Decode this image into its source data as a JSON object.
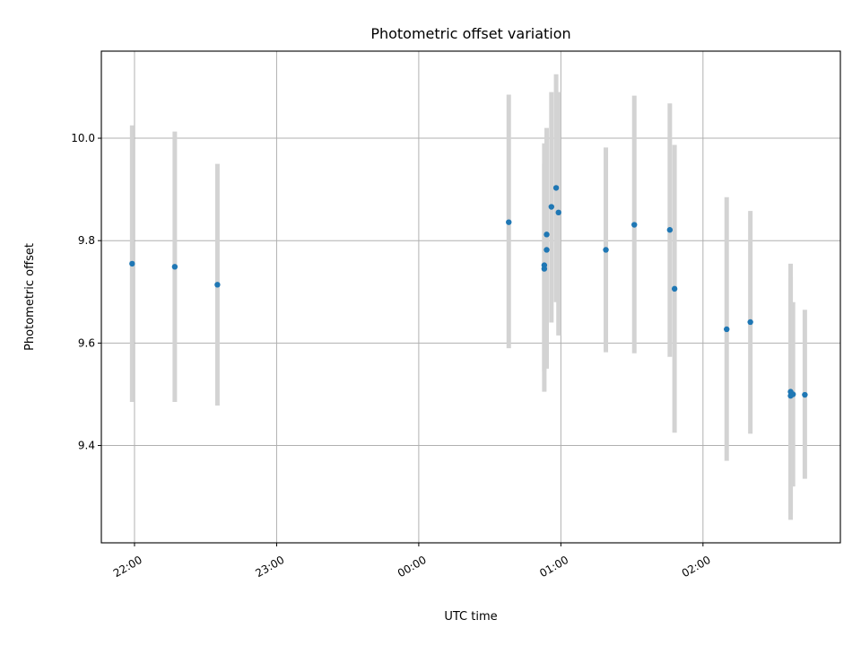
{
  "chart_data": {
    "type": "scatter",
    "title": "Photometric offset variation",
    "xlabel": "UTC time",
    "ylabel": "Photometric offset",
    "x_unit": "UTC time (hours, day-wrapped; 24.00 = 00:00)",
    "xlim": [
      "21:46",
      "02:58"
    ],
    "ylim": [
      9.21,
      10.17
    ],
    "x_ticks": [
      {
        "label": "22:00",
        "value": 22.0
      },
      {
        "label": "23:00",
        "value": 23.0
      },
      {
        "label": "00:00",
        "value": 24.0
      },
      {
        "label": "01:00",
        "value": 25.0
      },
      {
        "label": "02:00",
        "value": 26.0
      }
    ],
    "y_ticks": [
      {
        "label": "9.4",
        "value": 9.4
      },
      {
        "label": "9.6",
        "value": 9.6
      },
      {
        "label": "9.8",
        "value": 9.8
      },
      {
        "label": "10.0",
        "value": 10.0
      }
    ],
    "grid": true,
    "points_color": "#1f77b4",
    "errorbar_color": "#d3d3d3",
    "series": [
      {
        "points": [
          {
            "t": "21:59",
            "y": 9.755,
            "lo": 9.485,
            "hi": 10.025
          },
          {
            "t": "22:17",
            "y": 9.749,
            "lo": 9.485,
            "hi": 10.013
          },
          {
            "t": "22:35",
            "y": 9.714,
            "lo": 9.478,
            "hi": 9.95
          },
          {
            "t": "00:38",
            "y": 9.836,
            "lo": 9.59,
            "hi": 10.085
          },
          {
            "t": "00:53",
            "y": 9.752,
            "lo": 9.505,
            "hi": 9.99
          },
          {
            "t": "00:53",
            "y": 9.745,
            "lo": 9.545,
            "hi": 9.95
          },
          {
            "t": "00:54",
            "y": 9.782,
            "lo": 9.55,
            "hi": 10.02
          },
          {
            "t": "00:54",
            "y": 9.812,
            "lo": 9.62,
            "hi": 10.0
          },
          {
            "t": "00:56",
            "y": 9.866,
            "lo": 9.64,
            "hi": 10.09
          },
          {
            "t": "00:58",
            "y": 9.903,
            "lo": 9.68,
            "hi": 10.125
          },
          {
            "t": "00:59",
            "y": 9.855,
            "lo": 9.615,
            "hi": 10.09
          },
          {
            "t": "01:19",
            "y": 9.782,
            "lo": 9.582,
            "hi": 9.982
          },
          {
            "t": "01:31",
            "y": 9.831,
            "lo": 9.58,
            "hi": 10.083
          },
          {
            "t": "01:46",
            "y": 9.821,
            "lo": 9.573,
            "hi": 10.068
          },
          {
            "t": "01:48",
            "y": 9.706,
            "lo": 9.425,
            "hi": 9.987
          },
          {
            "t": "02:10",
            "y": 9.627,
            "lo": 9.37,
            "hi": 9.885
          },
          {
            "t": "02:20",
            "y": 9.641,
            "lo": 9.423,
            "hi": 9.858
          },
          {
            "t": "02:37",
            "y": 9.505,
            "lo": 9.255,
            "hi": 9.755
          },
          {
            "t": "02:37",
            "y": 9.497,
            "lo": 9.268,
            "hi": 9.728
          },
          {
            "t": "02:38",
            "y": 9.5,
            "lo": 9.32,
            "hi": 9.68
          },
          {
            "t": "02:43",
            "y": 9.499,
            "lo": 9.335,
            "hi": 9.665
          }
        ]
      }
    ]
  }
}
